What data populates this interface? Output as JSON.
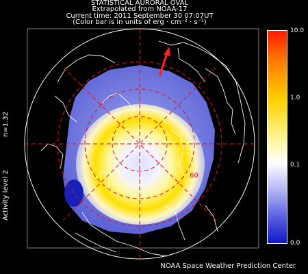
{
  "header": {
    "line1": "STATISTICAL AURORAL OVAL",
    "line2": "Extrapolated from NOAA-17",
    "line3": "Current time: 2011 September 30 07:07UT",
    "line4": "(Color bar is in units of erg · cm⁻² · s⁻¹)"
  },
  "side": {
    "n_label": "n=1.32",
    "activity_label": "Activity level 2"
  },
  "colorbar": {
    "ticks": [
      "10.0",
      "1.0",
      "0.1",
      "0.0"
    ],
    "colors": {
      "max": "#ff1a00",
      "mid": "#ffe400",
      "low": "#ffffff",
      "min": "#1018c8"
    }
  },
  "map": {
    "latitude_label": "60",
    "sun_arrow_color": "#ff2020",
    "grid_color": "#e0101a",
    "coast_color": "#ffffff"
  },
  "credit": "NOAA Space Weather Prediction Center"
}
